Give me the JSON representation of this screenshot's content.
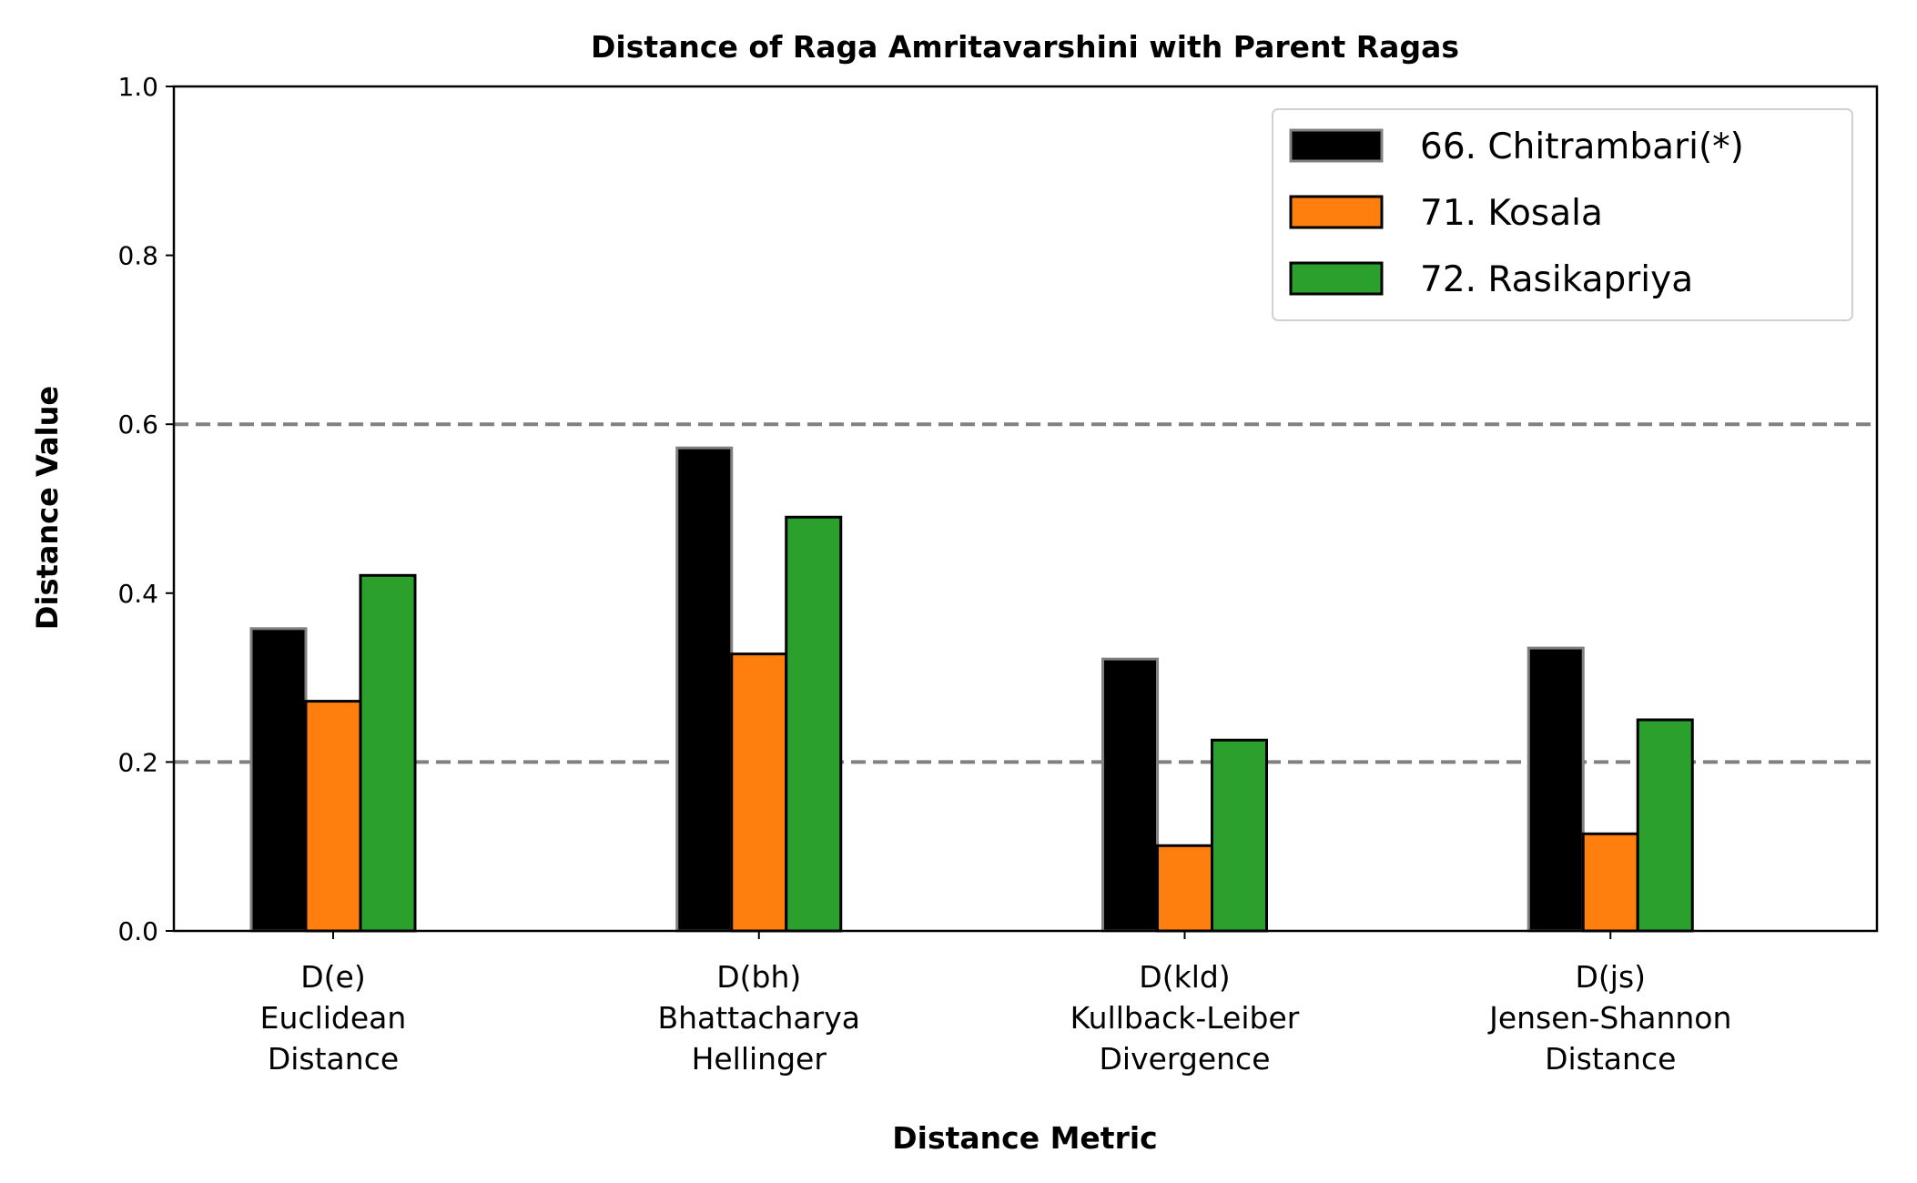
{
  "chart_data": {
    "type": "bar",
    "title": "Distance of Raga Amritavarshini with Parent Ragas",
    "xlabel": "Distance Metric",
    "ylabel": "Distance Value",
    "ylim": [
      0,
      1.0
    ],
    "yticks": [
      "0.0",
      "0.2",
      "0.4",
      "0.6",
      "0.8",
      "1.0"
    ],
    "ytick_values": [
      0.0,
      0.2,
      0.4,
      0.6,
      0.8,
      1.0
    ],
    "reference_lines": [
      0.2,
      0.6
    ],
    "grid": false,
    "legend_position": "top-right",
    "categories": [
      [
        "D(e)",
        "Euclidean",
        "Distance"
      ],
      [
        "D(bh)",
        "Bhattacharya",
        "Hellinger"
      ],
      [
        "D(kld)",
        "Kullback-Leiber",
        "Divergence"
      ],
      [
        "D(js)",
        "Jensen-Shannon",
        "Distance"
      ]
    ],
    "series": [
      {
        "name": "66. Chitrambari(*)",
        "color": "#000000",
        "edge": "#808080",
        "values": [
          0.358,
          0.572,
          0.322,
          0.335
        ]
      },
      {
        "name": "71. Kosala",
        "color": "#ff7f0e",
        "edge": "#000000",
        "values": [
          0.272,
          0.328,
          0.101,
          0.115
        ]
      },
      {
        "name": "72. Rasikapriya",
        "color": "#2ca02c",
        "edge": "#000000",
        "values": [
          0.421,
          0.49,
          0.226,
          0.25
        ]
      }
    ]
  }
}
